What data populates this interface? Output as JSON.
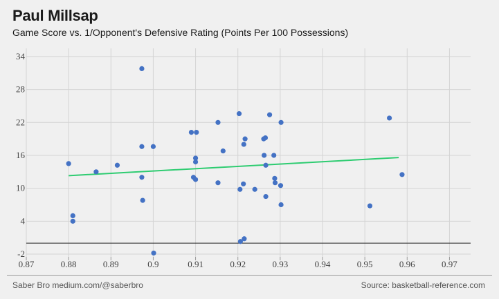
{
  "header": {
    "title": "Paul Millsap",
    "subtitle": "Game Score vs. 1/Opponent's Defensive Rating (Points Per 100 Possessions)"
  },
  "footer": {
    "left": "Saber Bro medium.com/@saberbro",
    "right": "Source: basketball-reference.com"
  },
  "colors": {
    "background": "#f0f0f0",
    "point": "#4472c4",
    "trend": "#2ecc71",
    "grid": "#d4d4d4",
    "baseline": "#222222"
  },
  "chart_data": {
    "type": "scatter",
    "title": "Paul Millsap",
    "subtitle": "Game Score vs. 1/Opponent's Defensive Rating (Points Per 100 Possessions)",
    "xlabel": "",
    "ylabel": "",
    "xlim": [
      0.87,
      0.975
    ],
    "ylim": [
      -2.5,
      35.5
    ],
    "x_ticks": [
      0.87,
      0.88,
      0.89,
      0.9,
      0.91,
      0.92,
      0.93,
      0.94,
      0.95,
      0.96,
      0.97
    ],
    "x_tick_labels": [
      "0.87",
      "0.88",
      "0.89",
      "0.9",
      "0.91",
      "0.92",
      "0.93",
      "0.94",
      "0.95",
      "0.96",
      "0.97"
    ],
    "y_ticks": [
      -2,
      4,
      10,
      16,
      22,
      28,
      34
    ],
    "y_tick_labels": [
      "-2",
      "4",
      "10",
      "16",
      "22",
      "28",
      "34"
    ],
    "baseline_y": 0,
    "grid": true,
    "series": [
      {
        "name": "Game Score",
        "x": [
          0.88,
          0.881,
          0.881,
          0.8865,
          0.8915,
          0.8973,
          0.8973,
          0.8973,
          0.8975,
          0.9,
          0.9001,
          0.909,
          0.9095,
          0.91,
          0.91,
          0.91,
          0.9102,
          0.9153,
          0.9153,
          0.9165,
          0.9203,
          0.9205,
          0.9206,
          0.9213,
          0.9214,
          0.9215,
          0.9217,
          0.924,
          0.9261,
          0.9262,
          0.9265,
          0.9266,
          0.9266,
          0.9275,
          0.9285,
          0.9287,
          0.9288,
          0.9301,
          0.9302,
          0.9302,
          0.9512,
          0.9558,
          0.9588
        ],
        "y": [
          14.5,
          5.0,
          4.0,
          13.0,
          14.2,
          31.8,
          17.6,
          12.0,
          7.8,
          17.6,
          -1.8,
          20.2,
          12.0,
          15.5,
          14.8,
          11.6,
          20.2,
          22.0,
          11.0,
          16.8,
          23.6,
          9.8,
          0.3,
          10.8,
          18.0,
          0.8,
          19.0,
          9.8,
          19.0,
          16.0,
          19.2,
          8.5,
          14.2,
          23.4,
          16.0,
          11.8,
          11.0,
          10.5,
          22.0,
          7.0,
          6.8,
          22.8,
          12.5
        ]
      }
    ],
    "trendline": {
      "name": "Linear fit",
      "x": [
        0.88,
        0.958
      ],
      "y": [
        12.3,
        15.6
      ]
    }
  }
}
